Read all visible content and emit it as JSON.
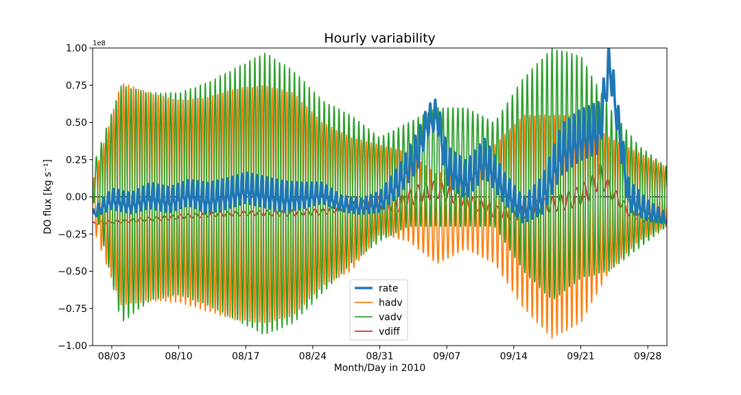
{
  "chart_data": {
    "type": "line",
    "title": "Hourly variability",
    "xlabel": "Month/Day in 2010",
    "ylabel": "DO flux [kg s⁻¹]",
    "y_offset_label": "1e8",
    "ylim": [
      -1.0,
      1.0
    ],
    "y_scale_multiplier": 100000000,
    "x_start": "2010-08-01",
    "x_end": "2010-09-30",
    "x_ticks": [
      {
        "date": "2010-08-03",
        "label": "08/03"
      },
      {
        "date": "2010-08-10",
        "label": "08/10"
      },
      {
        "date": "2010-08-17",
        "label": "08/17"
      },
      {
        "date": "2010-08-24",
        "label": "08/24"
      },
      {
        "date": "2010-08-31",
        "label": "08/31"
      },
      {
        "date": "2010-09-07",
        "label": "09/07"
      },
      {
        "date": "2010-09-14",
        "label": "09/14"
      },
      {
        "date": "2010-09-21",
        "label": "09/21"
      },
      {
        "date": "2010-09-28",
        "label": "09/28"
      }
    ],
    "y_ticks": [
      {
        "value": -1.0,
        "label": "−1.00"
      },
      {
        "value": -0.75,
        "label": "−0.75"
      },
      {
        "value": -0.5,
        "label": "−0.50"
      },
      {
        "value": -0.25,
        "label": "−0.25"
      },
      {
        "value": 0.0,
        "label": "0.00"
      },
      {
        "value": 0.25,
        "label": "0.25"
      },
      {
        "value": 0.5,
        "label": "0.50"
      },
      {
        "value": 0.75,
        "label": "0.75"
      },
      {
        "value": 1.0,
        "label": "1.00"
      }
    ],
    "zero_line": {
      "value": 0.0,
      "style": "dotted",
      "color": "#000000"
    },
    "legend": {
      "position": "lower center"
    },
    "series": [
      {
        "name": "rate",
        "color": "#1f77b4",
        "emphasis": "thick",
        "x": [
          "2010-08-01",
          "2010-08-03",
          "2010-08-05",
          "2010-08-07",
          "2010-08-09",
          "2010-08-11",
          "2010-08-13",
          "2010-08-15",
          "2010-08-17",
          "2010-08-19",
          "2010-08-21",
          "2010-08-23",
          "2010-08-25",
          "2010-08-27",
          "2010-08-29",
          "2010-08-31",
          "2010-09-02",
          "2010-09-04",
          "2010-09-05",
          "2010-09-06",
          "2010-09-07",
          "2010-09-09",
          "2010-09-11",
          "2010-09-13",
          "2010-09-15",
          "2010-09-17",
          "2010-09-19",
          "2010-09-21",
          "2010-09-23",
          "2010-09-24",
          "2010-09-26",
          "2010-09-28",
          "2010-09-30"
        ],
        "y": [
          -0.12,
          -0.02,
          -0.05,
          0.0,
          -0.03,
          0.02,
          -0.02,
          0.01,
          0.05,
          0.02,
          -0.01,
          0.0,
          0.02,
          -0.05,
          -0.07,
          -0.04,
          0.1,
          0.3,
          0.5,
          0.55,
          0.2,
          0.1,
          0.25,
          0.05,
          -0.1,
          0.0,
          0.3,
          0.4,
          0.45,
          0.9,
          0.0,
          -0.1,
          -0.15
        ],
        "amplitude": [
          0.03,
          0.08,
          0.08,
          0.1,
          0.1,
          0.1,
          0.12,
          0.12,
          0.12,
          0.12,
          0.12,
          0.1,
          0.08,
          0.06,
          0.06,
          0.08,
          0.12,
          0.15,
          0.12,
          0.12,
          0.15,
          0.15,
          0.15,
          0.12,
          0.1,
          0.15,
          0.2,
          0.2,
          0.2,
          0.15,
          0.12,
          0.08,
          0.04
        ]
      },
      {
        "name": "hadv",
        "color": "#ff7f0e",
        "emphasis": "normal",
        "x": [
          "2010-08-01",
          "2010-08-04",
          "2010-08-07",
          "2010-08-10",
          "2010-08-13",
          "2010-08-16",
          "2010-08-19",
          "2010-08-22",
          "2010-08-25",
          "2010-08-28",
          "2010-08-31",
          "2010-09-03",
          "2010-09-06",
          "2010-09-09",
          "2010-09-12",
          "2010-09-15",
          "2010-09-18",
          "2010-09-21",
          "2010-09-24",
          "2010-09-27",
          "2010-09-30"
        ],
        "y": [
          -0.05,
          0.02,
          0.0,
          -0.03,
          -0.05,
          -0.05,
          -0.05,
          -0.05,
          -0.05,
          -0.05,
          0.05,
          0.0,
          -0.15,
          -0.05,
          -0.05,
          -0.1,
          -0.2,
          -0.15,
          -0.05,
          0.0,
          0.0
        ],
        "amplitude": [
          0.15,
          0.75,
          0.7,
          0.68,
          0.72,
          0.78,
          0.8,
          0.75,
          0.55,
          0.45,
          0.3,
          0.3,
          0.3,
          0.3,
          0.4,
          0.65,
          0.75,
          0.7,
          0.45,
          0.3,
          0.2
        ]
      },
      {
        "name": "vadv",
        "color": "#2ca02c",
        "emphasis": "normal",
        "x": [
          "2010-08-01",
          "2010-08-04",
          "2010-08-07",
          "2010-08-10",
          "2010-08-13",
          "2010-08-16",
          "2010-08-19",
          "2010-08-22",
          "2010-08-25",
          "2010-08-28",
          "2010-08-31",
          "2010-09-03",
          "2010-09-06",
          "2010-09-09",
          "2010-09-12",
          "2010-09-15",
          "2010-09-18",
          "2010-09-21",
          "2010-09-24",
          "2010-09-27",
          "2010-09-30"
        ],
        "y": [
          0.1,
          -0.05,
          0.0,
          0.02,
          0.02,
          0.02,
          0.02,
          0.0,
          0.0,
          0.05,
          0.05,
          0.15,
          0.2,
          0.2,
          0.15,
          0.15,
          0.15,
          0.2,
          0.05,
          0.0,
          0.0
        ],
        "amplitude": [
          0.1,
          0.8,
          0.7,
          0.68,
          0.75,
          0.85,
          0.95,
          0.85,
          0.65,
          0.5,
          0.35,
          0.35,
          0.4,
          0.4,
          0.35,
          0.65,
          0.85,
          0.75,
          0.55,
          0.35,
          0.2
        ]
      },
      {
        "name": "vdiff",
        "color": "#d62728",
        "emphasis": "normal",
        "x": [
          "2010-08-01",
          "2010-08-05",
          "2010-08-09",
          "2010-08-13",
          "2010-08-17",
          "2010-08-21",
          "2010-08-25",
          "2010-08-29",
          "2010-08-31",
          "2010-09-02",
          "2010-09-04",
          "2010-09-06",
          "2010-09-08",
          "2010-09-10",
          "2010-09-12",
          "2010-09-14",
          "2010-09-16",
          "2010-09-18",
          "2010-09-20",
          "2010-09-22",
          "2010-09-23",
          "2010-09-24",
          "2010-09-26",
          "2010-09-28",
          "2010-09-30"
        ],
        "y": [
          -0.18,
          -0.16,
          -0.14,
          -0.12,
          -0.11,
          -0.11,
          -0.1,
          -0.05,
          -0.05,
          -0.05,
          0.02,
          0.05,
          0.0,
          -0.05,
          -0.1,
          -0.12,
          -0.08,
          -0.05,
          -0.02,
          0.05,
          0.15,
          0.05,
          -0.1,
          -0.16,
          -0.16
        ],
        "amplitude": [
          0.01,
          0.01,
          0.015,
          0.015,
          0.015,
          0.02,
          0.02,
          0.03,
          0.04,
          0.05,
          0.06,
          0.06,
          0.05,
          0.04,
          0.04,
          0.04,
          0.05,
          0.05,
          0.06,
          0.07,
          0.08,
          0.05,
          0.03,
          0.02,
          0.01
        ]
      }
    ]
  }
}
